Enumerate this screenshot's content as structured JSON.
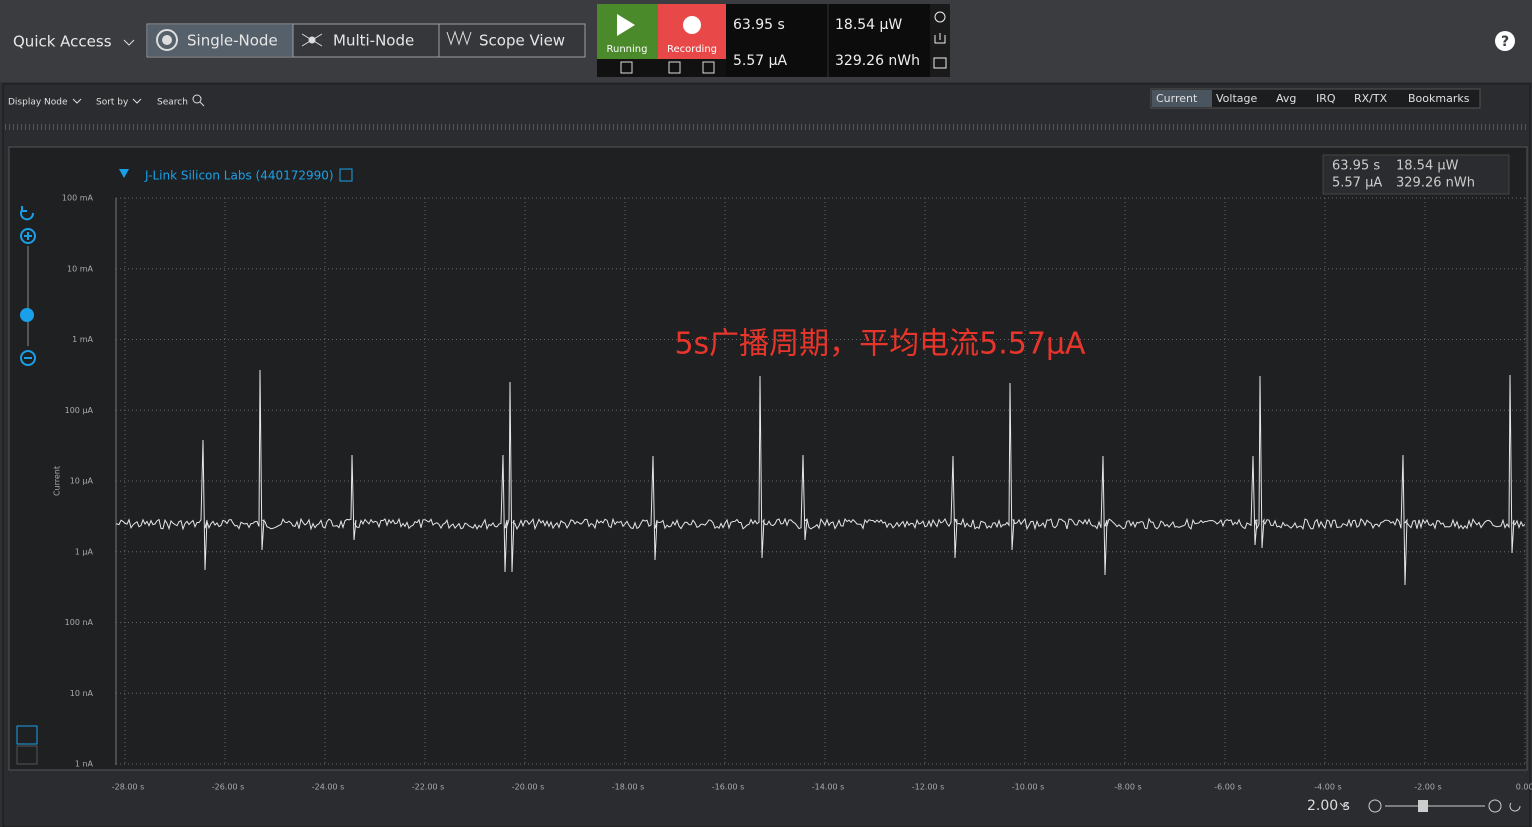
{
  "header": {
    "quick_access": "Quick Access",
    "modes": [
      "Single-Node",
      "Multi-Node",
      "Scope View"
    ],
    "running": "Running",
    "recording": "Recording",
    "stats": {
      "time": "63.95 s",
      "current": "5.57 μA",
      "power": "18.54 μW",
      "energy": "329.26 nWh"
    }
  },
  "toolbar": {
    "display_node": "Display Node",
    "sort_by": "Sort by",
    "search": "Search",
    "tabs": [
      "Current",
      "Voltage",
      "Avg",
      "IRQ",
      "RX/TX",
      "Bookmarks"
    ]
  },
  "plot": {
    "device": "J-Link Silicon Labs (440172990)",
    "y_label": "Current",
    "annotation": "5s广播周期，平均电流5.57μA",
    "yticks": [
      "100 mA",
      "10 mA",
      "1 mA",
      "100 μA",
      "10 μA",
      "1 μA",
      "100 nA",
      "10 nA",
      "1 nA"
    ],
    "xticks": [
      "-28.00 s",
      "-26.00 s",
      "-24.00 s",
      "-22.00 s",
      "-20.00 s",
      "-18.00 s",
      "-16.00 s",
      "-14.00 s",
      "-12.00 s",
      "-10.00 s",
      "-8.00 s",
      "-6.00 s",
      "-4.00 s",
      "-2.00 s",
      "0.00 s"
    ]
  },
  "zoom": "2.00 s"
}
